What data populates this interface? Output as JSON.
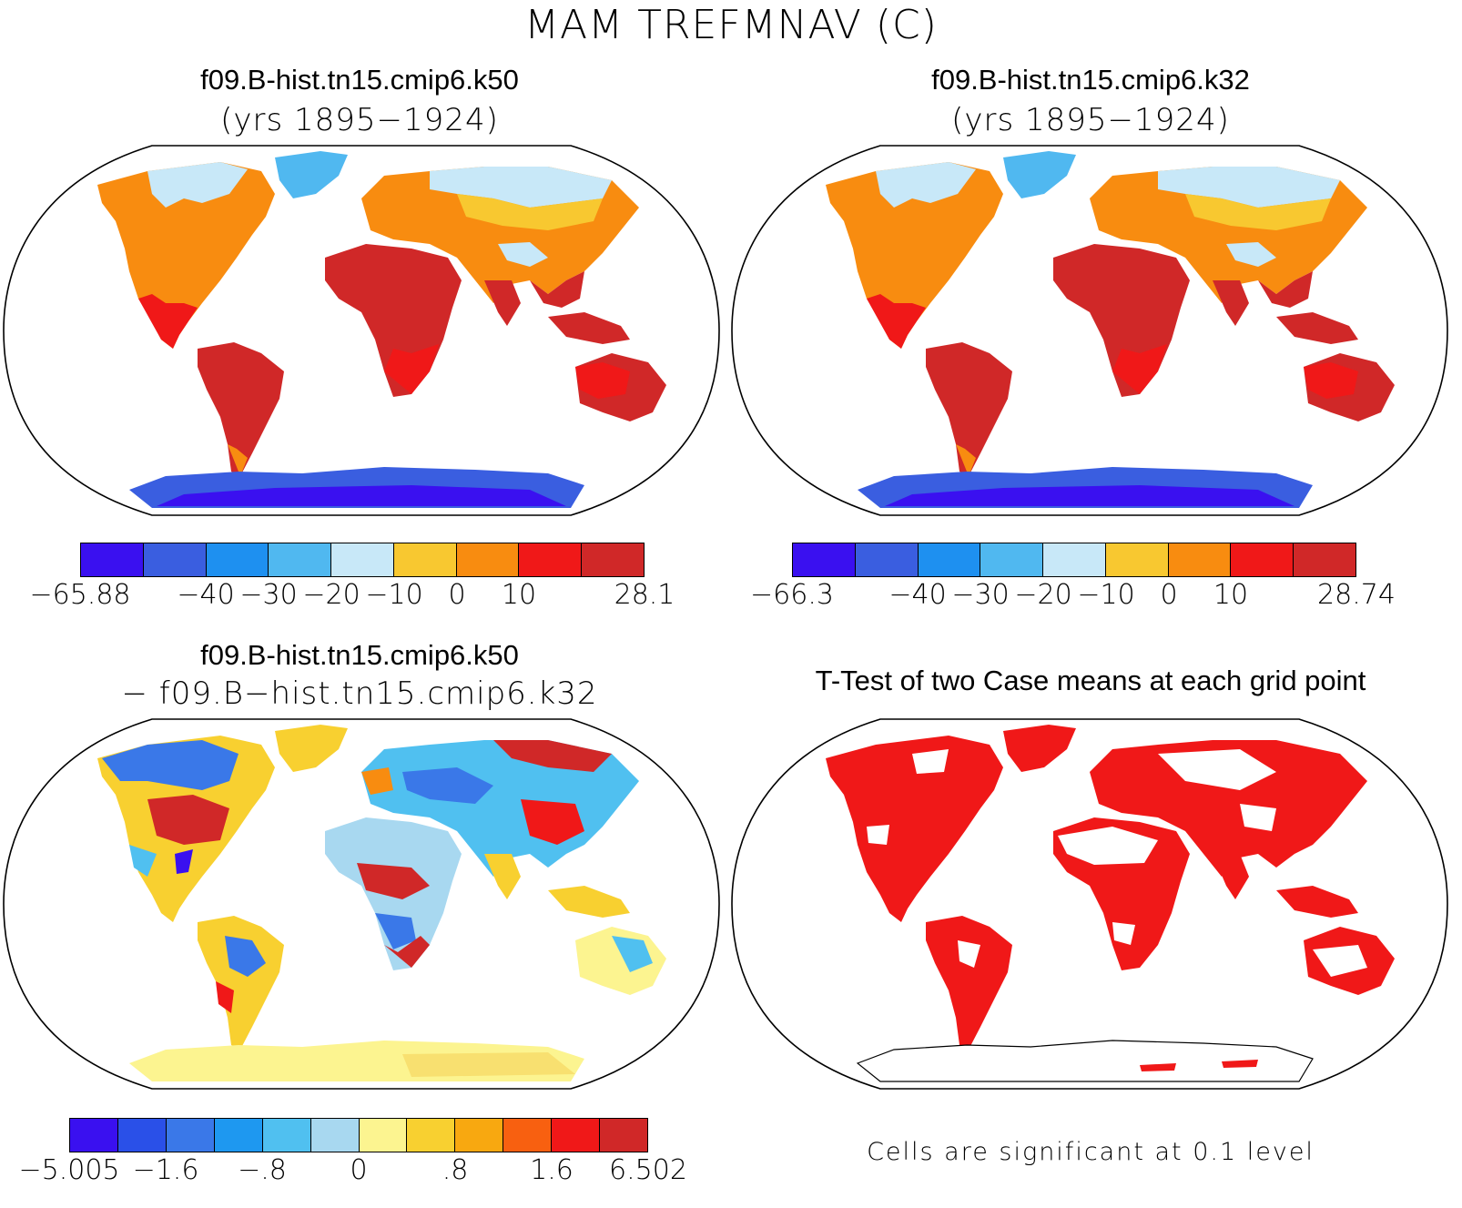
{
  "title": "MAM TREFMNAV (C)",
  "panels": {
    "top_left": {
      "title": "f09.B-hist.tn15.cmip6.k50",
      "subtitle": "(yrs 1895−1924)",
      "colorbar": {
        "colors": [
          "#3a10f0",
          "#3a5ee0",
          "#1e90f0",
          "#50b8f0",
          "#c8e8f8",
          "#f8c830",
          "#f88c10",
          "#f01818",
          "#d02828"
        ],
        "labels": [
          "−65.88",
          "−40",
          "−30",
          "−20",
          "−10",
          "0",
          "10",
          "28.1"
        ]
      }
    },
    "top_right": {
      "title": "f09.B-hist.tn15.cmip6.k32",
      "subtitle": "(yrs 1895−1924)",
      "colorbar": {
        "colors": [
          "#3a10f0",
          "#3a5ee0",
          "#1e90f0",
          "#50b8f0",
          "#c8e8f8",
          "#f8c830",
          "#f88c10",
          "#f01818",
          "#d02828"
        ],
        "labels": [
          "−66.3",
          "−40",
          "−30",
          "−20",
          "−10",
          "0",
          "10",
          "28.74"
        ]
      }
    },
    "bottom_left": {
      "title": "f09.B-hist.tn15.cmip6.k50",
      "subtitle": "− f09.B−hist.tn15.cmip6.k32",
      "colorbar": {
        "colors": [
          "#3a10f0",
          "#2a50e8",
          "#3a78e8",
          "#1e98f0",
          "#50c0f0",
          "#a8d8f0",
          "#fcf490",
          "#f8d030",
          "#f8a810",
          "#f86010",
          "#f01818",
          "#d02828"
        ],
        "labels": [
          "−5.005",
          "−1.6",
          "−.8",
          "0",
          ".8",
          "1.6",
          "6.502"
        ]
      }
    },
    "bottom_right": {
      "title": "T-Test of two Case means at each grid point",
      "note": "Cells are significant at 0.1 level",
      "significant_color": "#f01818"
    }
  }
}
